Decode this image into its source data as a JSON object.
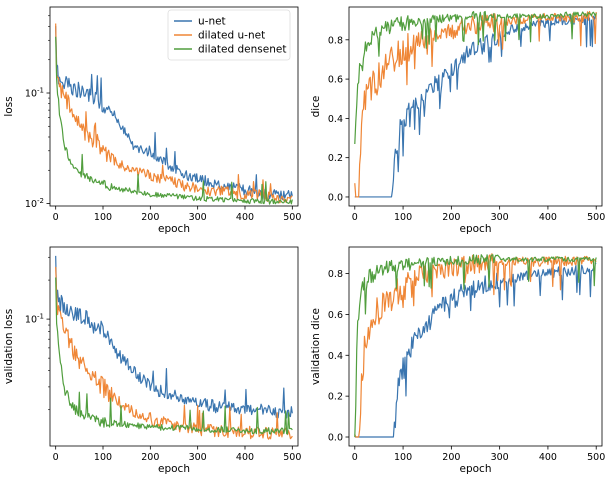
{
  "legend": {
    "placement": "top-center (inside top-left panel)",
    "entries": [
      "u-net",
      "dilated u-net",
      "dilated densenet"
    ]
  },
  "colors": {
    "u-net": "#3a75af",
    "dilated u-net": "#ef8636",
    "dilated densenet": "#519e3e"
  },
  "chart_data": [
    {
      "type": "line",
      "panel": "top-left",
      "xlabel": "epoch",
      "ylabel": "loss",
      "xlim": [
        -12,
        512
      ],
      "ylim": [
        0.0095,
        0.6
      ],
      "yscale": "log",
      "xticks": [
        0,
        100,
        200,
        300,
        400,
        500
      ],
      "yticks": [
        {
          "value": 0.1,
          "label": "10^-1"
        },
        {
          "value": 0.01,
          "label": "10^-2"
        }
      ],
      "grid": false,
      "series": [
        {
          "name": "u-net",
          "x": [
            0,
            2,
            5,
            10,
            20,
            40,
            60,
            80,
            100,
            120,
            140,
            160,
            180,
            200,
            220,
            240,
            260,
            280,
            300,
            320,
            340,
            360,
            380,
            400,
            420,
            440,
            460,
            480,
            500
          ],
          "y": [
            0.45,
            0.18,
            0.14,
            0.13,
            0.125,
            0.11,
            0.1,
            0.09,
            0.08,
            0.065,
            0.05,
            0.035,
            0.03,
            0.03,
            0.025,
            0.022,
            0.02,
            0.018,
            0.017,
            0.016,
            0.015,
            0.014,
            0.014,
            0.013,
            0.013,
            0.012,
            0.012,
            0.012,
            0.012
          ]
        },
        {
          "name": "dilated u-net",
          "x": [
            0,
            2,
            5,
            10,
            20,
            40,
            60,
            80,
            100,
            120,
            140,
            160,
            180,
            200,
            220,
            240,
            260,
            280,
            300,
            320,
            340,
            360,
            380,
            400,
            420,
            440,
            460,
            480,
            500
          ],
          "y": [
            0.5,
            0.16,
            0.12,
            0.11,
            0.09,
            0.06,
            0.045,
            0.035,
            0.03,
            0.025,
            0.022,
            0.02,
            0.019,
            0.018,
            0.017,
            0.016,
            0.015,
            0.014,
            0.014,
            0.013,
            0.013,
            0.013,
            0.012,
            0.012,
            0.012,
            0.012,
            0.011,
            0.011,
            0.011
          ]
        },
        {
          "name": "dilated densenet",
          "x": [
            0,
            2,
            5,
            10,
            20,
            30,
            40,
            60,
            80,
            100,
            120,
            140,
            160,
            180,
            200,
            220,
            240,
            260,
            280,
            300,
            320,
            340,
            360,
            380,
            400,
            420,
            440,
            460,
            480,
            500
          ],
          "y": [
            0.3,
            0.13,
            0.09,
            0.055,
            0.032,
            0.025,
            0.021,
            0.018,
            0.016,
            0.015,
            0.014,
            0.0135,
            0.013,
            0.0125,
            0.012,
            0.012,
            0.0118,
            0.0115,
            0.0113,
            0.0111,
            0.011,
            0.011,
            0.0108,
            0.0107,
            0.0106,
            0.0105,
            0.0105,
            0.0104,
            0.0104,
            0.0103
          ]
        }
      ]
    },
    {
      "type": "line",
      "panel": "top-right",
      "xlabel": "epoch",
      "ylabel": "dice",
      "xlim": [
        -12,
        512
      ],
      "ylim": [
        -0.046,
        0.967
      ],
      "xticks": [
        0,
        100,
        200,
        300,
        400,
        500
      ],
      "yticks": [
        0.0,
        0.2,
        0.4,
        0.6,
        0.8
      ],
      "grid": false,
      "series": [
        {
          "name": "u-net",
          "x": [
            0,
            10,
            20,
            40,
            60,
            75,
            78,
            80,
            85,
            90,
            100,
            120,
            140,
            160,
            180,
            200,
            220,
            240,
            260,
            280,
            300,
            320,
            340,
            360,
            380,
            400,
            420,
            440,
            460,
            480,
            500
          ],
          "y": [
            0.0,
            0.0,
            0.0,
            0.0,
            0.0,
            0.0,
            0.02,
            0.15,
            0.25,
            0.3,
            0.38,
            0.45,
            0.5,
            0.55,
            0.6,
            0.65,
            0.7,
            0.74,
            0.77,
            0.8,
            0.83,
            0.85,
            0.86,
            0.87,
            0.88,
            0.89,
            0.9,
            0.9,
            0.9,
            0.9,
            0.91
          ]
        },
        {
          "name": "dilated u-net",
          "x": [
            0,
            2,
            5,
            8,
            10,
            12,
            15,
            20,
            30,
            40,
            60,
            80,
            100,
            120,
            140,
            160,
            180,
            200,
            220,
            240,
            260,
            280,
            300,
            320,
            340,
            360,
            380,
            400,
            420,
            440,
            460,
            480,
            500
          ],
          "y": [
            0.02,
            0.0,
            0.0,
            0.0,
            0.1,
            0.25,
            0.4,
            0.5,
            0.55,
            0.6,
            0.65,
            0.7,
            0.75,
            0.78,
            0.8,
            0.82,
            0.84,
            0.85,
            0.86,
            0.87,
            0.88,
            0.88,
            0.89,
            0.9,
            0.9,
            0.9,
            0.91,
            0.91,
            0.91,
            0.91,
            0.91,
            0.92,
            0.92
          ]
        },
        {
          "name": "dilated densenet",
          "x": [
            0,
            3,
            6,
            10,
            15,
            20,
            30,
            40,
            60,
            80,
            100,
            120,
            140,
            160,
            180,
            200,
            220,
            240,
            260,
            280,
            300,
            320,
            340,
            360,
            380,
            400,
            420,
            440,
            460,
            480,
            500
          ],
          "y": [
            0.3,
            0.45,
            0.55,
            0.65,
            0.72,
            0.76,
            0.8,
            0.83,
            0.86,
            0.87,
            0.88,
            0.89,
            0.9,
            0.9,
            0.91,
            0.91,
            0.91,
            0.92,
            0.92,
            0.92,
            0.92,
            0.92,
            0.92,
            0.92,
            0.92,
            0.92,
            0.92,
            0.93,
            0.93,
            0.93,
            0.93
          ]
        }
      ]
    },
    {
      "type": "line",
      "panel": "bottom-left",
      "xlabel": "epoch",
      "ylabel": "validation loss",
      "xlim": [
        -12,
        512
      ],
      "ylim": [
        0.0105,
        0.36
      ],
      "yscale": "log",
      "xticks": [
        0,
        100,
        200,
        300,
        400,
        500
      ],
      "yticks": [
        {
          "value": 0.1,
          "label": "10^-1"
        }
      ],
      "grid": false,
      "series": [
        {
          "name": "u-net",
          "x": [
            0,
            2,
            5,
            10,
            20,
            40,
            60,
            80,
            100,
            120,
            140,
            160,
            180,
            200,
            220,
            240,
            260,
            280,
            300,
            320,
            340,
            360,
            380,
            400,
            420,
            440,
            460,
            480,
            500
          ],
          "y": [
            0.3,
            0.16,
            0.14,
            0.13,
            0.12,
            0.11,
            0.1,
            0.09,
            0.08,
            0.06,
            0.05,
            0.042,
            0.035,
            0.03,
            0.028,
            0.026,
            0.025,
            0.024,
            0.023,
            0.022,
            0.021,
            0.021,
            0.02,
            0.02,
            0.02,
            0.02,
            0.019,
            0.019,
            0.019
          ]
        },
        {
          "name": "dilated u-net",
          "x": [
            0,
            2,
            5,
            10,
            20,
            40,
            60,
            80,
            100,
            120,
            140,
            160,
            180,
            200,
            220,
            240,
            260,
            280,
            300,
            320,
            340,
            360,
            380,
            400,
            420,
            440,
            460,
            480,
            500
          ],
          "y": [
            0.3,
            0.14,
            0.11,
            0.1,
            0.08,
            0.055,
            0.042,
            0.035,
            0.03,
            0.025,
            0.022,
            0.02,
            0.018,
            0.017,
            0.016,
            0.0155,
            0.015,
            0.0145,
            0.014,
            0.014,
            0.0138,
            0.0136,
            0.0135,
            0.0134,
            0.0133,
            0.0132,
            0.0132,
            0.0131,
            0.013
          ]
        },
        {
          "name": "dilated densenet",
          "x": [
            0,
            2,
            5,
            10,
            15,
            20,
            30,
            40,
            60,
            80,
            100,
            120,
            140,
            160,
            180,
            200,
            220,
            240,
            260,
            280,
            300,
            320,
            340,
            360,
            380,
            400,
            420,
            440,
            460,
            480,
            500
          ],
          "y": [
            0.2,
            0.1,
            0.07,
            0.05,
            0.035,
            0.028,
            0.023,
            0.02,
            0.018,
            0.017,
            0.016,
            0.0158,
            0.0155,
            0.0152,
            0.015,
            0.0148,
            0.0146,
            0.0145,
            0.0144,
            0.0143,
            0.0142,
            0.0141,
            0.014,
            0.014,
            0.0139,
            0.0139,
            0.0138,
            0.0138,
            0.0137,
            0.0137,
            0.0137
          ]
        }
      ]
    },
    {
      "type": "line",
      "panel": "bottom-right",
      "xlabel": "epoch",
      "ylabel": "validation dice",
      "xlim": [
        -12,
        512
      ],
      "ylim": [
        -0.044,
        0.93
      ],
      "xticks": [
        0,
        100,
        200,
        300,
        400,
        500
      ],
      "yticks": [
        0.0,
        0.2,
        0.4,
        0.6,
        0.8
      ],
      "grid": false,
      "series": [
        {
          "name": "u-net",
          "x": [
            0,
            10,
            20,
            40,
            60,
            80,
            84,
            88,
            95,
            100,
            110,
            120,
            140,
            160,
            180,
            200,
            220,
            240,
            260,
            280,
            300,
            320,
            340,
            360,
            380,
            400,
            420,
            440,
            460,
            480,
            500
          ],
          "y": [
            0.0,
            0.0,
            0.0,
            0.0,
            0.0,
            0.0,
            0.1,
            0.25,
            0.3,
            0.35,
            0.4,
            0.45,
            0.52,
            0.58,
            0.63,
            0.67,
            0.7,
            0.72,
            0.74,
            0.75,
            0.76,
            0.77,
            0.78,
            0.79,
            0.8,
            0.8,
            0.81,
            0.81,
            0.82,
            0.82,
            0.83
          ]
        },
        {
          "name": "dilated u-net",
          "x": [
            0,
            2,
            5,
            8,
            12,
            15,
            20,
            30,
            40,
            60,
            80,
            100,
            120,
            140,
            160,
            180,
            200,
            220,
            240,
            260,
            280,
            300,
            320,
            340,
            360,
            380,
            400,
            420,
            440,
            460,
            480,
            500
          ],
          "y": [
            0.02,
            0.0,
            0.0,
            0.0,
            0.1,
            0.3,
            0.45,
            0.55,
            0.6,
            0.66,
            0.7,
            0.74,
            0.77,
            0.8,
            0.81,
            0.82,
            0.83,
            0.84,
            0.84,
            0.85,
            0.85,
            0.85,
            0.86,
            0.86,
            0.86,
            0.86,
            0.86,
            0.86,
            0.86,
            0.86,
            0.86,
            0.86
          ]
        },
        {
          "name": "dilated densenet",
          "x": [
            0,
            3,
            6,
            10,
            15,
            20,
            30,
            40,
            60,
            80,
            100,
            120,
            140,
            160,
            180,
            200,
            220,
            240,
            260,
            280,
            300,
            320,
            340,
            360,
            380,
            400,
            420,
            440,
            460,
            480,
            500
          ],
          "y": [
            0.1,
            0.4,
            0.55,
            0.65,
            0.72,
            0.75,
            0.78,
            0.8,
            0.82,
            0.83,
            0.84,
            0.85,
            0.85,
            0.86,
            0.86,
            0.86,
            0.86,
            0.87,
            0.87,
            0.87,
            0.87,
            0.87,
            0.87,
            0.87,
            0.87,
            0.87,
            0.87,
            0.87,
            0.87,
            0.87,
            0.87
          ]
        }
      ]
    }
  ]
}
